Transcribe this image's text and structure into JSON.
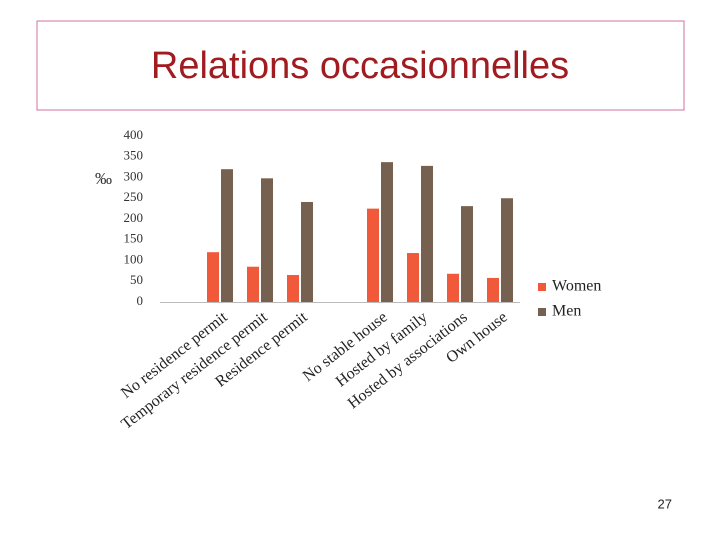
{
  "title": "Relations occasionnelles",
  "page_number": "27",
  "chart_data": {
    "type": "bar",
    "y_label": "‰",
    "categories": [
      null,
      "No residence permit",
      "Temporary residence permit",
      "Residence permit",
      null,
      "No stable house",
      "Hosted by family",
      "Hosted by associations",
      "Own house"
    ],
    "series": [
      {
        "name": "Women",
        "color": "#f05a3a",
        "values": [
          null,
          120,
          85,
          65,
          null,
          225,
          118,
          68,
          58
        ]
      },
      {
        "name": "Men",
        "color": "#76604f",
        "values": [
          null,
          320,
          298,
          241,
          null,
          337,
          328,
          231,
          250
        ]
      }
    ],
    "ylim": [
      0,
      400
    ],
    "yticks": [
      0,
      50,
      100,
      150,
      200,
      250,
      300,
      350,
      400
    ],
    "grid": false,
    "legend": "right"
  }
}
